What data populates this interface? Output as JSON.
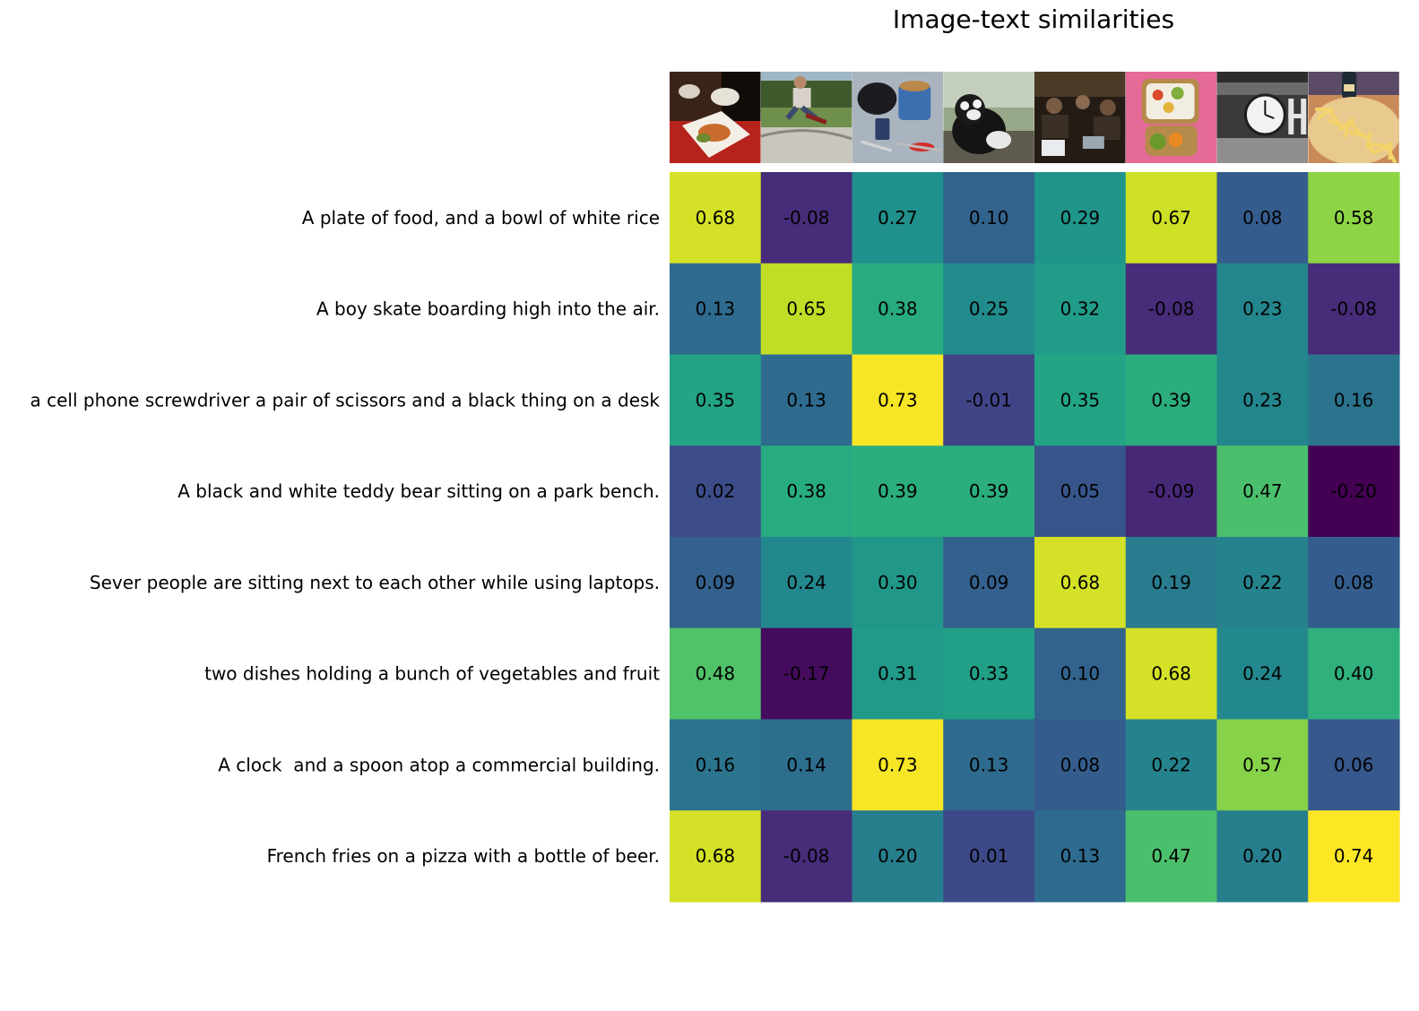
{
  "chart_data": {
    "type": "heatmap",
    "title": "Image-text similarities",
    "xlabel": "",
    "ylabel": "",
    "colormap": "viridis",
    "value_range": [
      -0.2,
      0.74
    ],
    "grid": false,
    "columns": [
      {
        "image": "plate of food with bowl of white rice on red tray"
      },
      {
        "image": "boy skateboarding in the air at a skate park"
      },
      {
        "image": "mug, cell phone, screwdriver and scissors on a desk"
      },
      {
        "image": "black and white teddy bear on a park bench"
      },
      {
        "image": "people sitting with laptops in a dim room"
      },
      {
        "image": "bento boxes with vegetables and fruit on pink cloth"
      },
      {
        "image": "clock on a commercial building"
      },
      {
        "image": "french fries on a pizza with a bottle of beer"
      }
    ],
    "rows": [
      "A plate of food, and a bowl of white rice",
      "A boy skate boarding high into the air.",
      "a cell phone screwdriver a pair of scissors and a black thing on a desk",
      "A black and white teddy bear sitting on a park bench.",
      "Sever people are sitting next to each other while using laptops.",
      "two dishes holding a bunch of vegetables and fruit",
      "A clock  and a spoon atop a commercial building.",
      "French fries on a pizza with a bottle of beer."
    ],
    "values": [
      [
        0.68,
        -0.08,
        0.27,
        0.1,
        0.29,
        0.67,
        0.08,
        0.58
      ],
      [
        0.13,
        0.65,
        0.38,
        0.25,
        0.32,
        -0.08,
        0.23,
        -0.08
      ],
      [
        0.35,
        0.13,
        0.73,
        -0.01,
        0.35,
        0.39,
        0.23,
        0.16
      ],
      [
        0.02,
        0.38,
        0.39,
        0.39,
        0.05,
        -0.09,
        0.47,
        -0.2
      ],
      [
        0.09,
        0.24,
        0.3,
        0.09,
        0.68,
        0.19,
        0.22,
        0.08
      ],
      [
        0.48,
        -0.17,
        0.31,
        0.33,
        0.1,
        0.68,
        0.24,
        0.4
      ],
      [
        0.16,
        0.14,
        0.73,
        0.13,
        0.08,
        0.22,
        0.57,
        0.06
      ],
      [
        0.68,
        -0.08,
        0.2,
        0.01,
        0.13,
        0.47,
        0.2,
        0.74
      ]
    ]
  }
}
